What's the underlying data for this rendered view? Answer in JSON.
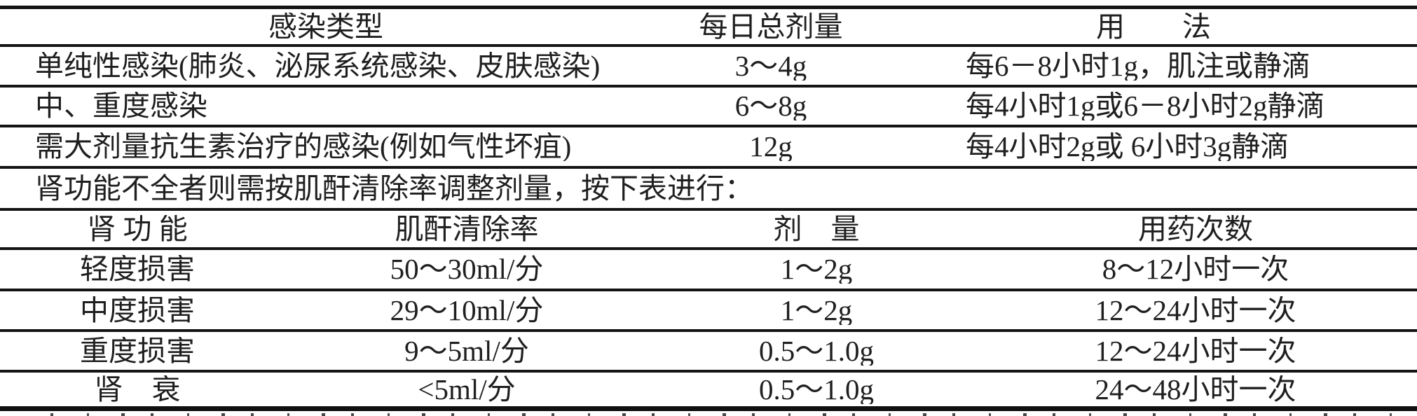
{
  "page": {
    "background": "#ffffff",
    "text_color": "#1f1f1f",
    "rule_color": "#141414",
    "description": "扫描的药品说明书剂量表格"
  },
  "dosage_table": {
    "headers": {
      "infection_type": "感染类型",
      "daily_dose": "每日总剂量",
      "usage": "用　　法"
    },
    "rows": [
      {
        "infection_type": "单纯性感染(肺炎、泌尿系统感染、皮肤感染)",
        "daily_dose": "3～4g",
        "usage": "每6－8小时1g，肌注或静滴"
      },
      {
        "infection_type": "中、重度感染",
        "daily_dose": "6～8g",
        "usage": "每4小时1g或6－8小时2g静滴"
      },
      {
        "infection_type": "需大剂量抗生素治疗的感染(例如气性坏疽)",
        "daily_dose": "12g",
        "usage": "每4小时2g或 6小时3g静滴"
      }
    ],
    "note": "肾功能不全者则需按肌酐清除率调整剂量，按下表进行："
  },
  "renal_table": {
    "headers": {
      "renal_function": "肾 功 能",
      "creatinine_clearance": "肌酐清除率",
      "dose": "剂　量",
      "frequency": "用药次数"
    },
    "rows": [
      {
        "renal_function": "轻度损害",
        "creatinine_clearance": "50～30ml/分",
        "dose": "1～2g",
        "frequency": "8～12小时一次"
      },
      {
        "renal_function": "中度损害",
        "creatinine_clearance": "29～10ml/分",
        "dose": "1～2g",
        "frequency": "12～24小时一次"
      },
      {
        "renal_function": "重度损害",
        "creatinine_clearance": "9～5ml/分",
        "dose": "0.5～1.0g",
        "frequency": "12～24小时一次"
      },
      {
        "renal_function": "肾　衰",
        "creatinine_clearance": "<5ml/分",
        "dose": "0.5～1.0g",
        "frequency": "24～48小时一次"
      }
    ]
  }
}
